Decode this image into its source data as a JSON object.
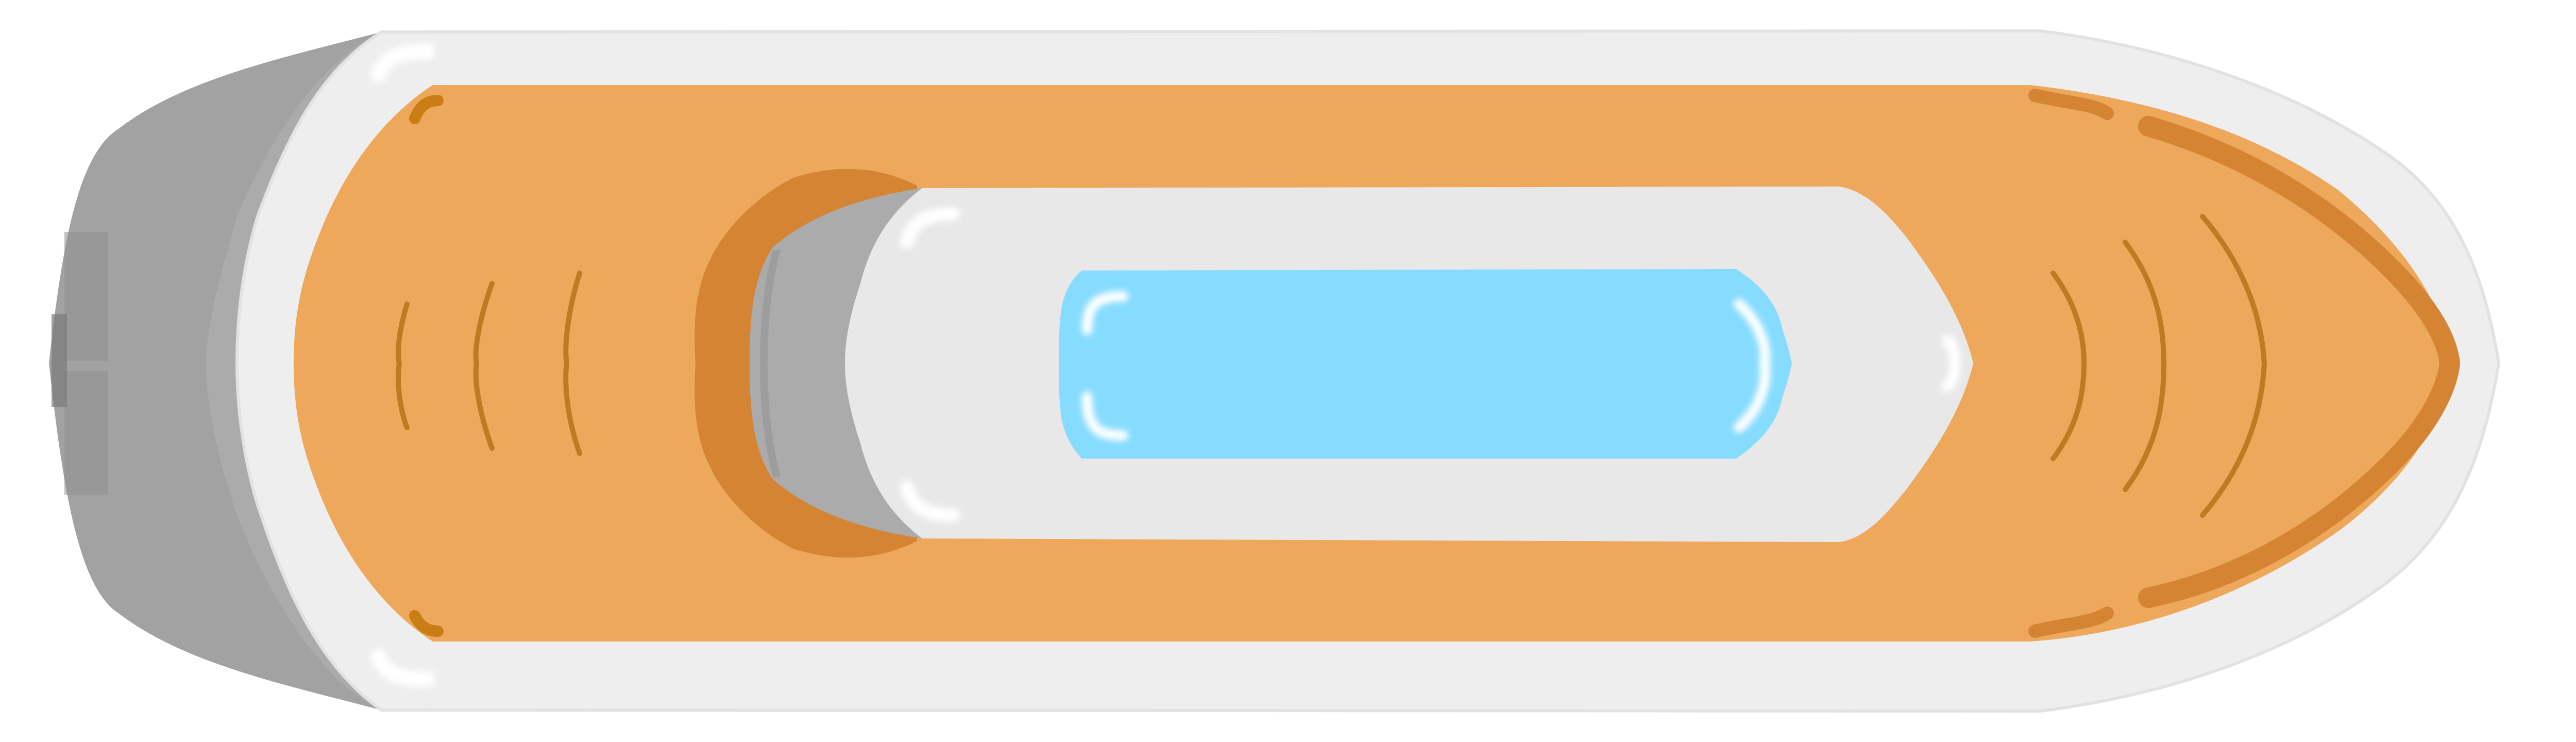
{
  "sprite": {
    "subject": "boat-top-view",
    "icon": "boat-icon",
    "colors": {
      "background": "#ffffff",
      "outer_hull": "#eeeeee",
      "outer_hull_edge": "#e2e2e2",
      "deck": "#eda85b",
      "deck_shadow": "#d48433",
      "deck_grooves": "#c07a22",
      "deck_accent": "#c97d14",
      "stern": "#a2a2a2",
      "stern_light": "#ababab",
      "stern_dark": "#8f8f8f",
      "stern_darkest": "#7a7a7a",
      "cabin": "#e8e8e8",
      "cabin_rear": "#ababab",
      "window": "#86dcfe",
      "highlight": "#ffffff"
    }
  }
}
